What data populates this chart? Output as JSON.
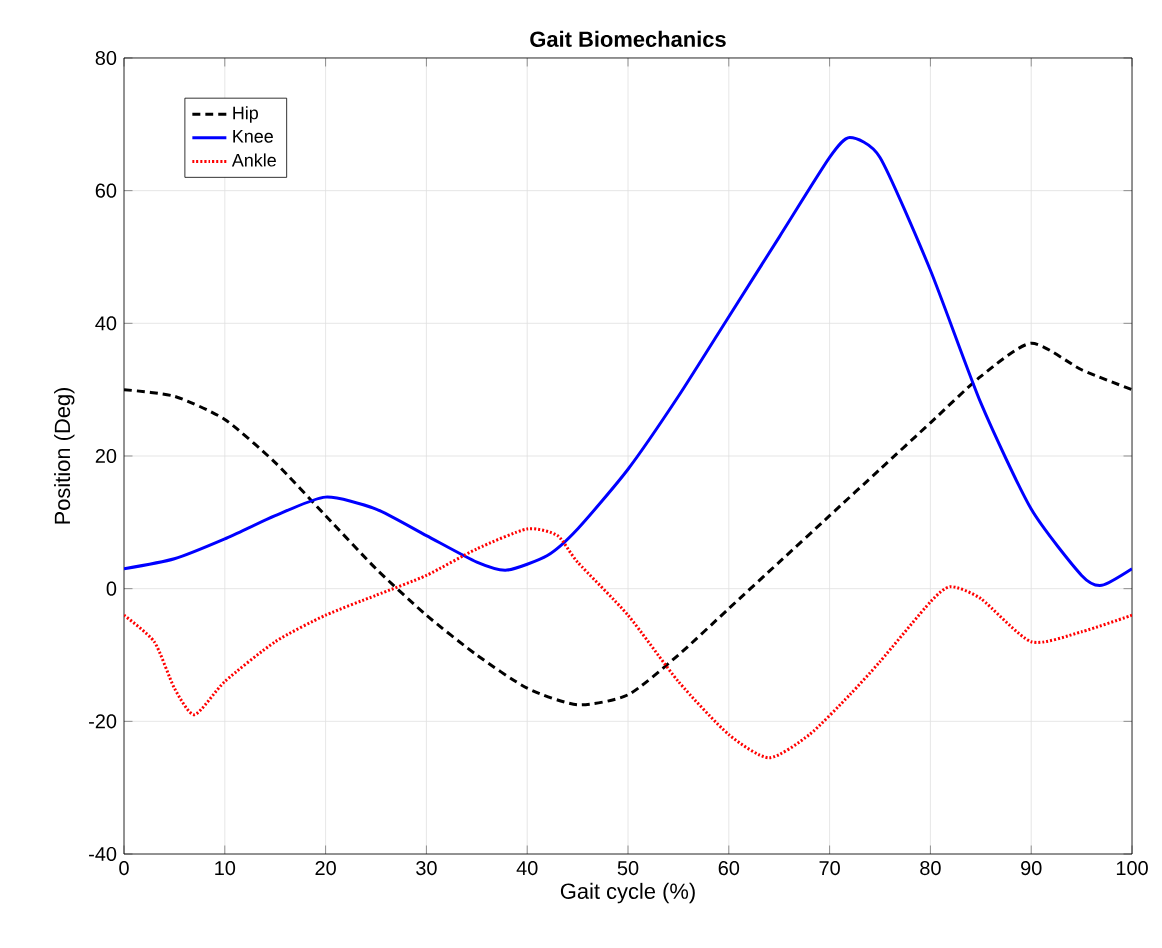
{
  "chart_data": {
    "type": "line",
    "title": "Gait Biomechanics",
    "xlabel": "Gait cycle (%)",
    "ylabel": "Position (Deg)",
    "xlim": [
      0,
      100
    ],
    "ylim": [
      -40,
      80
    ],
    "xticks": [
      0,
      10,
      20,
      30,
      40,
      50,
      60,
      70,
      80,
      90,
      100
    ],
    "yticks": [
      -40,
      -20,
      0,
      20,
      40,
      60,
      80
    ],
    "grid": true,
    "legend": "top left",
    "marker": "none",
    "series": [
      {
        "name": "Hip",
        "color": "#000000",
        "line_style": "dashed",
        "x": [
          0,
          5,
          10,
          15,
          20,
          25,
          30,
          35,
          40,
          45,
          50,
          55,
          60,
          65,
          70,
          75,
          80,
          85,
          90,
          95,
          100
        ],
        "values": [
          30,
          29,
          25.5,
          19,
          11,
          3,
          -4,
          -10,
          -15,
          -17.5,
          -16,
          -10,
          -3,
          4,
          11,
          18,
          25,
          32,
          37,
          33,
          30
        ]
      },
      {
        "name": "Knee",
        "color": "#0000ff",
        "line_style": "solid",
        "x": [
          0,
          5,
          10,
          15,
          20,
          25,
          30,
          35,
          38,
          42,
          45,
          50,
          55,
          60,
          65,
          70,
          72,
          75,
          80,
          85,
          90,
          95,
          97,
          100
        ],
        "values": [
          3,
          4.5,
          7.5,
          11,
          13.8,
          12,
          8,
          4,
          2.8,
          5,
          9,
          18,
          29,
          41,
          53,
          65,
          68,
          65,
          48,
          28,
          12,
          2,
          0.5,
          3
        ]
      },
      {
        "name": "Ankle",
        "color": "#ff0000",
        "line_style": "dotted",
        "x": [
          0,
          3,
          5,
          7,
          10,
          15,
          20,
          25,
          30,
          35,
          40,
          43,
          45,
          50,
          55,
          60,
          64,
          68,
          72,
          75,
          80,
          82,
          85,
          90,
          95,
          100
        ],
        "values": [
          -4,
          -8,
          -15,
          -19,
          -14,
          -8,
          -4,
          -1,
          2,
          6,
          9,
          8,
          4,
          -4,
          -14,
          -22,
          -25.5,
          -22,
          -16,
          -11,
          -2,
          0.3,
          -1.5,
          -8,
          -6.5,
          -4
        ]
      }
    ]
  }
}
